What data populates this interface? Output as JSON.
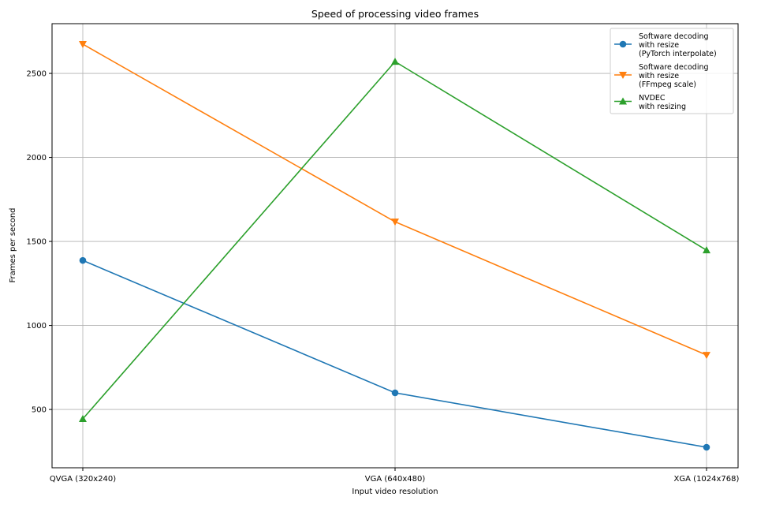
{
  "chart_data": {
    "type": "line",
    "title": "Speed of processing video frames",
    "xlabel": "Input video resolution",
    "ylabel": "Frames per second",
    "categories": [
      "QVGA (320x240)",
      "VGA (640x480)",
      "XGA (1024x768)"
    ],
    "ylim": [
      153,
      2796
    ],
    "yticks": [
      500,
      1000,
      1500,
      2000,
      2500
    ],
    "grid": true,
    "legend_position": "top-right",
    "series": [
      {
        "name": "Software decoding with resize (PyTorch interpolate)",
        "legend_lines": [
          "Software decoding",
          "with resize",
          "(PyTorch interpolate)"
        ],
        "color": "#1f77b4",
        "marker": "circle",
        "values": [
          1387,
          599,
          275
        ]
      },
      {
        "name": "Software decoding with resize (FFmpeg scale)",
        "legend_lines": [
          "Software decoding",
          "with resize",
          "(FFmpeg scale)"
        ],
        "color": "#ff7f0e",
        "marker": "triangle-down",
        "values": [
          2674,
          1617,
          824
        ]
      },
      {
        "name": "NVDEC with resizing",
        "legend_lines": [
          "NVDEC",
          "with resizing"
        ],
        "color": "#2ca02c",
        "marker": "triangle-up",
        "values": [
          444,
          2570,
          1448
        ]
      }
    ]
  }
}
